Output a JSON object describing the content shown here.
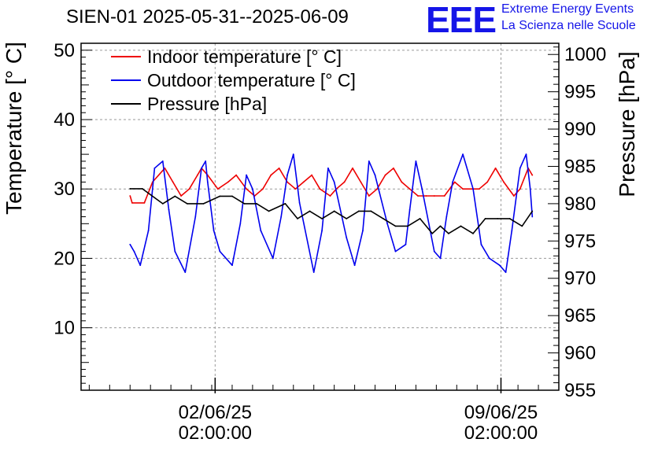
{
  "header": {
    "title": "SIEN-01 2025-05-31--2025-06-09",
    "logo_text": "EEE",
    "brand_line1": "Extreme Energy Events",
    "brand_line2": "La Scienza nelle Scuole"
  },
  "colors": {
    "indoor": "#ee0000",
    "outdoor": "#0000ee",
    "pressure": "#000000",
    "brand": "#1515e8",
    "grid": "#9a9a9a"
  },
  "chart_data": {
    "type": "line",
    "title": "SIEN-01 2025-05-31--2025-06-09",
    "xlabel": "",
    "ylabel_left": "Temperature [° C]",
    "ylabel_right": "Pressure [hPa]",
    "x_unit": "days since 2025-05-31 00:00",
    "xlim": [
      -1.2,
      10.5
    ],
    "ylim_left": [
      1,
      51
    ],
    "ylim_right": [
      955,
      1001.5
    ],
    "left_ticks": [
      10,
      20,
      30,
      40,
      50
    ],
    "right_ticks": [
      955,
      960,
      965,
      970,
      975,
      980,
      985,
      990,
      995,
      1000
    ],
    "x_ticks": [
      {
        "x": 2.083,
        "date": "02/06/25",
        "time": "02:00:00"
      },
      {
        "x": 9.083,
        "date": "09/06/25",
        "time": "02:00:00"
      }
    ],
    "grid": true,
    "legend": {
      "position": "top-left",
      "entries": [
        "Indoor temperature [° C]",
        "Outdoor temperature [° C]",
        "Pressure [hPa]"
      ]
    },
    "series": [
      {
        "name": "Indoor temperature [° C]",
        "axis": "left",
        "x": [
          0.0,
          0.05,
          0.35,
          0.55,
          0.85,
          1.05,
          1.25,
          1.45,
          1.65,
          1.75,
          1.9,
          2.15,
          2.4,
          2.6,
          2.85,
          3.05,
          3.25,
          3.45,
          3.65,
          3.85,
          4.05,
          4.25,
          4.45,
          4.65,
          4.9,
          5.05,
          5.25,
          5.45,
          5.65,
          5.85,
          6.05,
          6.25,
          6.45,
          6.65,
          6.85,
          7.05,
          7.25,
          7.45,
          7.7,
          7.95,
          8.15,
          8.35,
          8.55,
          8.75,
          8.95,
          9.15,
          9.4,
          9.55,
          9.75,
          9.85
        ],
        "values": [
          29,
          28,
          28,
          31,
          33,
          31,
          29,
          30,
          32,
          33,
          32,
          30,
          31,
          32,
          30,
          29,
          30,
          32,
          33,
          31,
          30,
          31,
          32,
          30,
          29,
          30,
          31,
          33,
          31,
          29,
          30,
          32,
          33,
          31,
          30,
          29,
          29,
          29,
          29,
          31,
          30,
          30,
          30,
          31,
          33,
          31,
          29,
          30,
          33,
          32
        ]
      },
      {
        "name": "Outdoor temperature [° C]",
        "axis": "left",
        "x": [
          0.0,
          0.1,
          0.25,
          0.45,
          0.6,
          0.8,
          0.95,
          1.1,
          1.35,
          1.6,
          1.75,
          1.85,
          1.9,
          2.05,
          2.2,
          2.5,
          2.7,
          2.85,
          3.0,
          3.2,
          3.5,
          3.7,
          3.85,
          4.0,
          4.15,
          4.5,
          4.7,
          4.85,
          5.0,
          5.3,
          5.5,
          5.7,
          5.85,
          6.0,
          6.3,
          6.5,
          6.75,
          6.85,
          7.0,
          7.15,
          7.45,
          7.6,
          7.75,
          7.9,
          8.15,
          8.4,
          8.6,
          8.8,
          9.05,
          9.2,
          9.35,
          9.55,
          9.7,
          9.8,
          9.85
        ],
        "values": [
          22,
          21,
          19,
          24,
          33,
          34,
          27,
          21,
          18,
          26,
          33,
          34,
          31,
          24,
          21,
          19,
          25,
          32,
          30,
          24,
          20,
          26,
          32,
          35,
          28,
          18,
          24,
          33,
          31,
          23,
          19,
          24,
          34,
          32,
          25,
          21,
          22,
          27,
          34,
          30,
          21,
          20,
          26,
          31,
          35,
          30,
          22,
          20,
          19,
          18,
          24,
          33,
          35,
          30,
          26
        ]
      },
      {
        "name": "Pressure [hPa]",
        "axis": "right",
        "x": [
          0.0,
          0.3,
          0.8,
          1.1,
          1.4,
          1.8,
          2.2,
          2.5,
          2.8,
          3.1,
          3.4,
          3.8,
          4.1,
          4.4,
          4.7,
          5.0,
          5.3,
          5.6,
          5.9,
          6.2,
          6.5,
          6.8,
          7.1,
          7.4,
          7.6,
          7.8,
          8.1,
          8.4,
          8.7,
          9.0,
          9.3,
          9.6,
          9.85
        ],
        "values": [
          982,
          982,
          980,
          981,
          980,
          980,
          981,
          981,
          980,
          980,
          979,
          980,
          978,
          979,
          978,
          979,
          978,
          979,
          979,
          978,
          977,
          977,
          978,
          976,
          977,
          976,
          977,
          976,
          978,
          978,
          978,
          977,
          979
        ]
      }
    ]
  }
}
